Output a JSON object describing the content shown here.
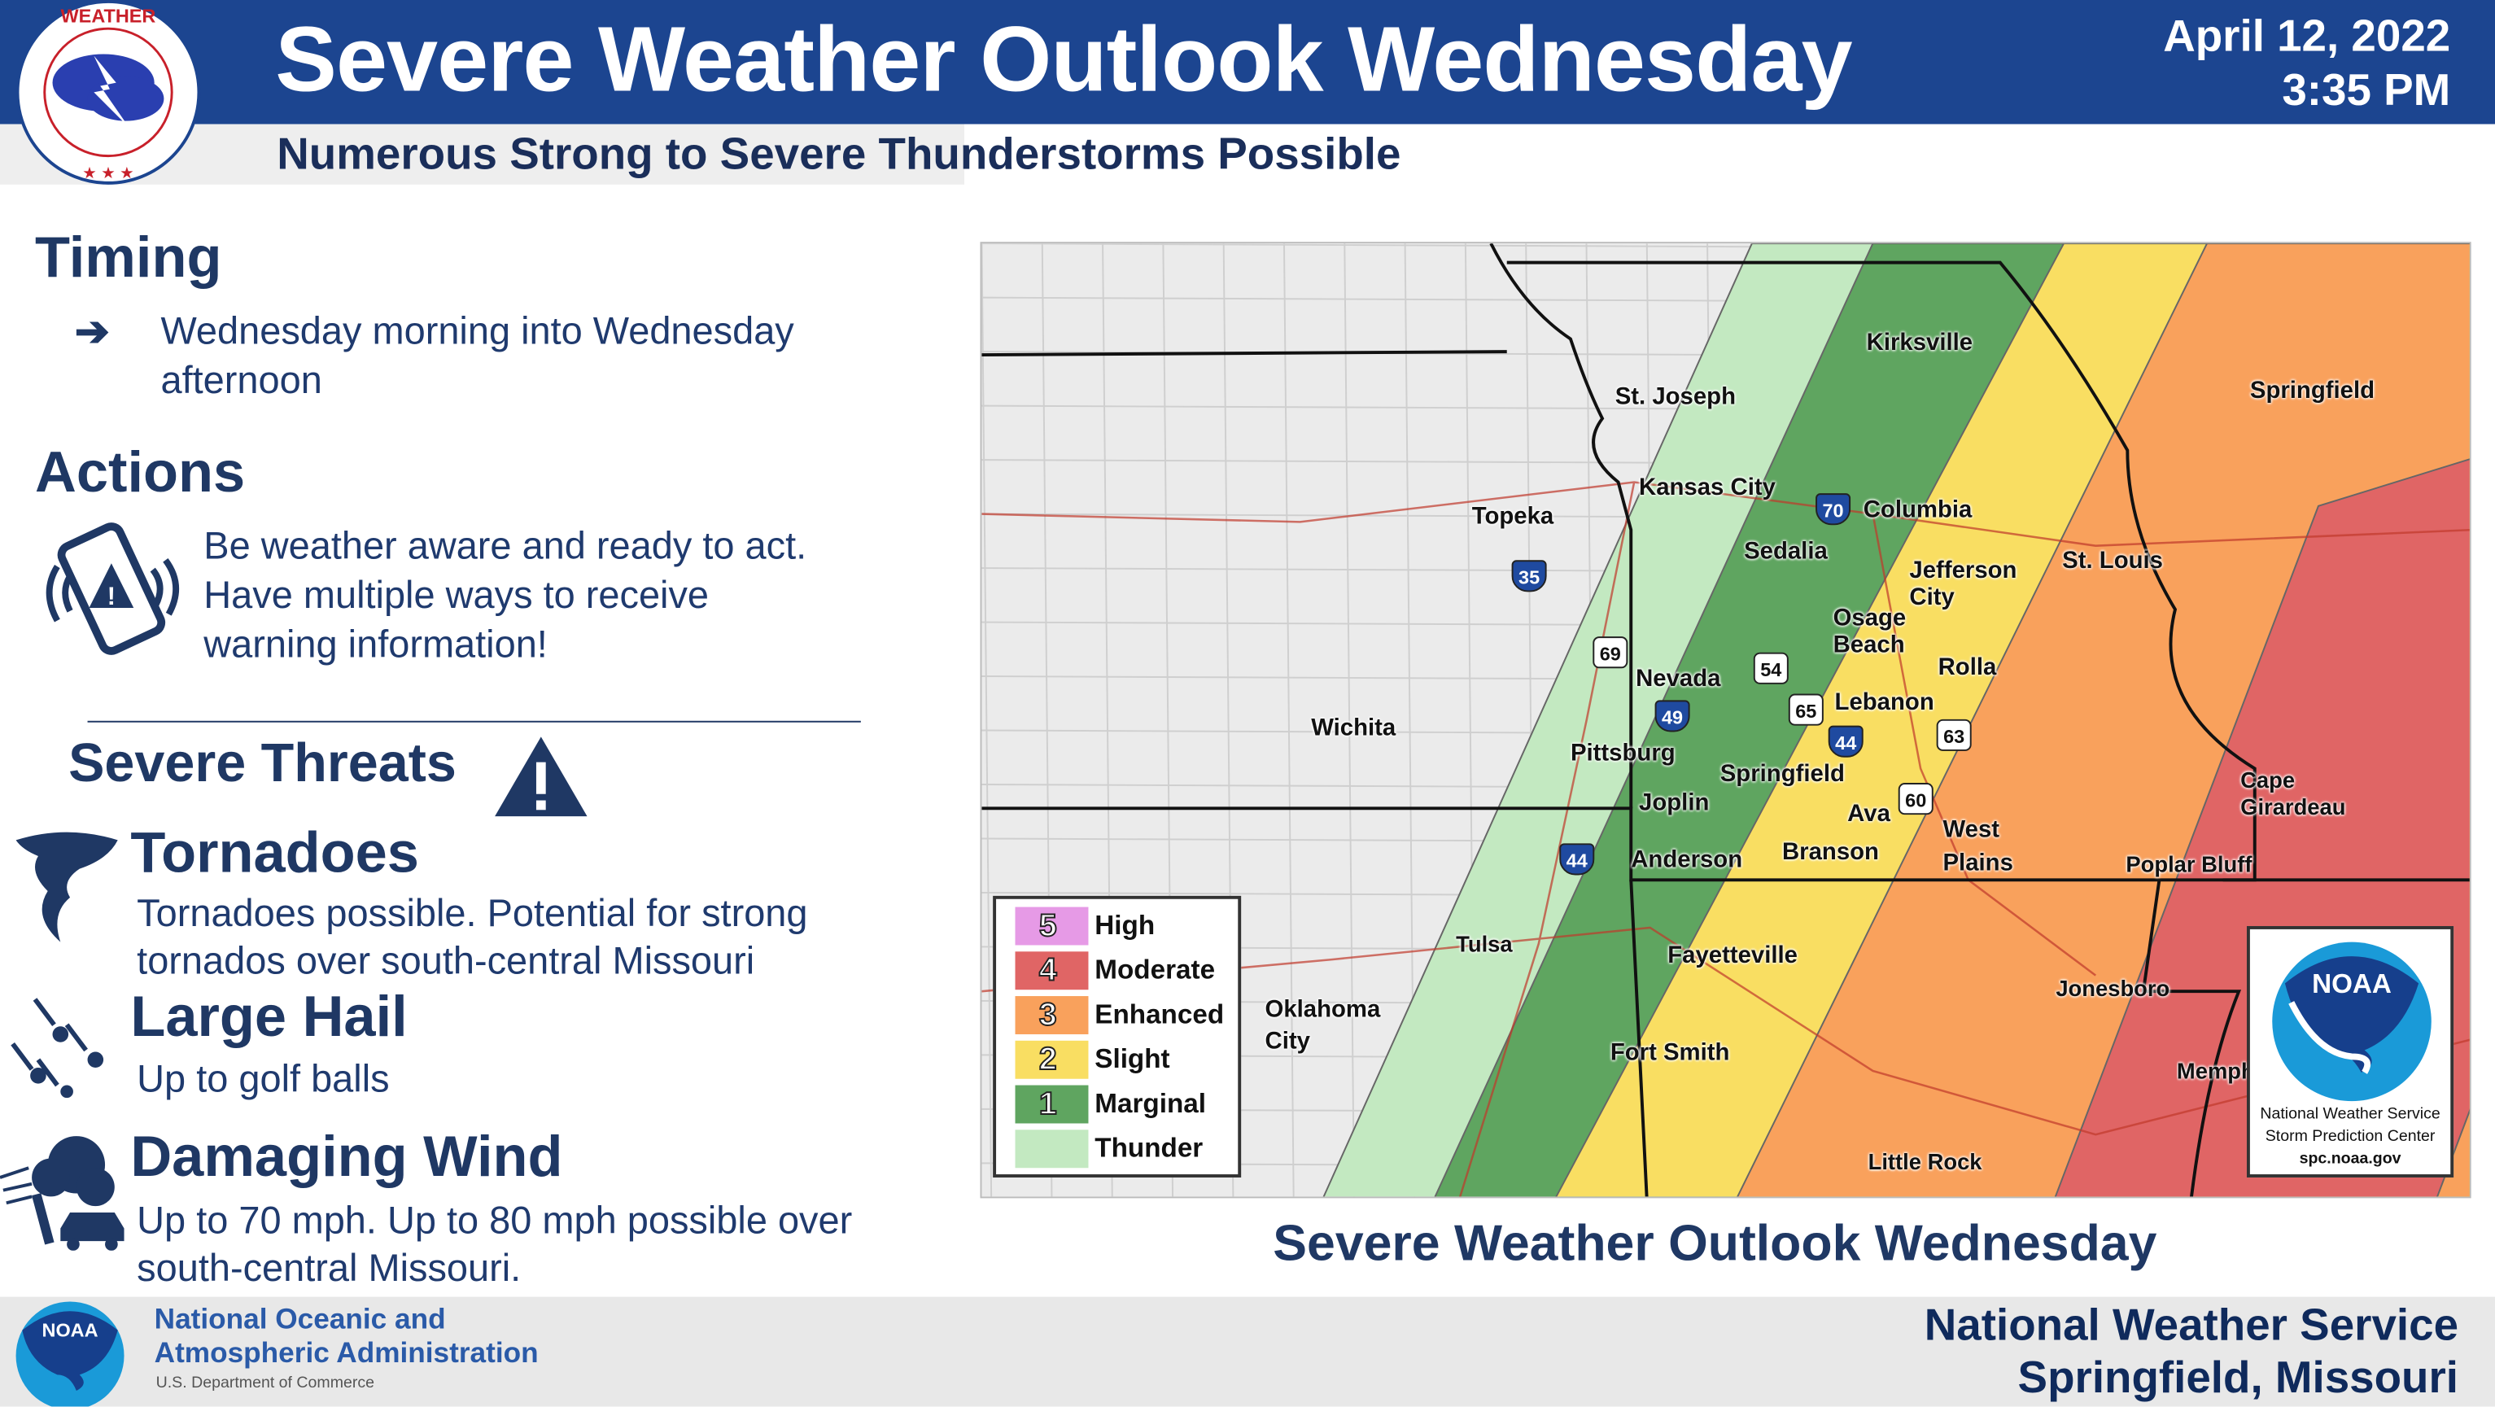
{
  "header": {
    "title": "Severe Weather Outlook Wednesday",
    "date": "April 12, 2022",
    "time": "3:35 PM",
    "subtitle": "Numerous Strong to Severe Thunderstorms Possible",
    "logo_text": "NATIONAL WEATHER SERVICE"
  },
  "timing": {
    "heading": "Timing",
    "line1": "Wednesday morning into Wednesday",
    "line2": "afternoon"
  },
  "actions": {
    "heading": "Actions",
    "line1": "Be weather aware and ready to act.",
    "line2": "Have multiple ways to receive",
    "line3": "warning information!"
  },
  "threats": {
    "heading": "Severe Threats",
    "tornadoes": {
      "heading": "Tornadoes",
      "line1": "Tornadoes possible. Potential for strong",
      "line2": "tornados over south-central Missouri"
    },
    "hail": {
      "heading": "Large Hail",
      "line1": "Up to golf balls"
    },
    "wind": {
      "heading": "Damaging Wind",
      "line1": "Up to 70 mph. Up to 80 mph possible over",
      "line2": "south-central Missouri."
    }
  },
  "map": {
    "caption": "Severe Weather Outlook Wednesday",
    "colors": {
      "thunder": "#c3e9c1",
      "marginal": "#5fa560",
      "slight": "#f9de62",
      "enhanced": "#f9a15c",
      "moderate": "#e06565",
      "high": "#e69ae6",
      "background": "#ebebeb"
    },
    "cities": [
      "St. Joseph",
      "Kirksville",
      "Springfield",
      "Kansas City",
      "Topeka",
      "Columbia",
      "Sedalia",
      "Jefferson City",
      "St. Louis",
      "Osage Beach",
      "Rolla",
      "Nevada",
      "Lebanon",
      "Wichita",
      "Pittsburg",
      "Springfield",
      "Joplin",
      "Ava",
      "West Plains",
      "Cape Girardeau",
      "Anderson",
      "Branson",
      "Poplar Bluff",
      "Tulsa",
      "Fayetteville",
      "Jonesboro",
      "Oklahoma City",
      "Fort Smith",
      "Memphis",
      "Little Rock"
    ],
    "shields": [
      "35",
      "70",
      "69",
      "54",
      "49",
      "65",
      "44",
      "63",
      "60",
      "44"
    ],
    "legend": [
      {
        "num": "5",
        "label": "High"
      },
      {
        "num": "4",
        "label": "Moderate"
      },
      {
        "num": "3",
        "label": "Enhanced"
      },
      {
        "num": "2",
        "label": "Slight"
      },
      {
        "num": "1",
        "label": "Marginal"
      },
      {
        "num": "",
        "label": "Thunder"
      }
    ],
    "spc": {
      "logo": "NOAA",
      "line1": "National Weather Service",
      "line2": "Storm Prediction Center",
      "line3": "spc.noaa.gov"
    }
  },
  "footer": {
    "noaa_logo": "NOAA",
    "org1": "National Oceanic and",
    "org2": "Atmospheric Administration",
    "dept": "U.S. Department of Commerce",
    "office1": "National Weather Service",
    "office2": "Springfield, Missouri"
  }
}
